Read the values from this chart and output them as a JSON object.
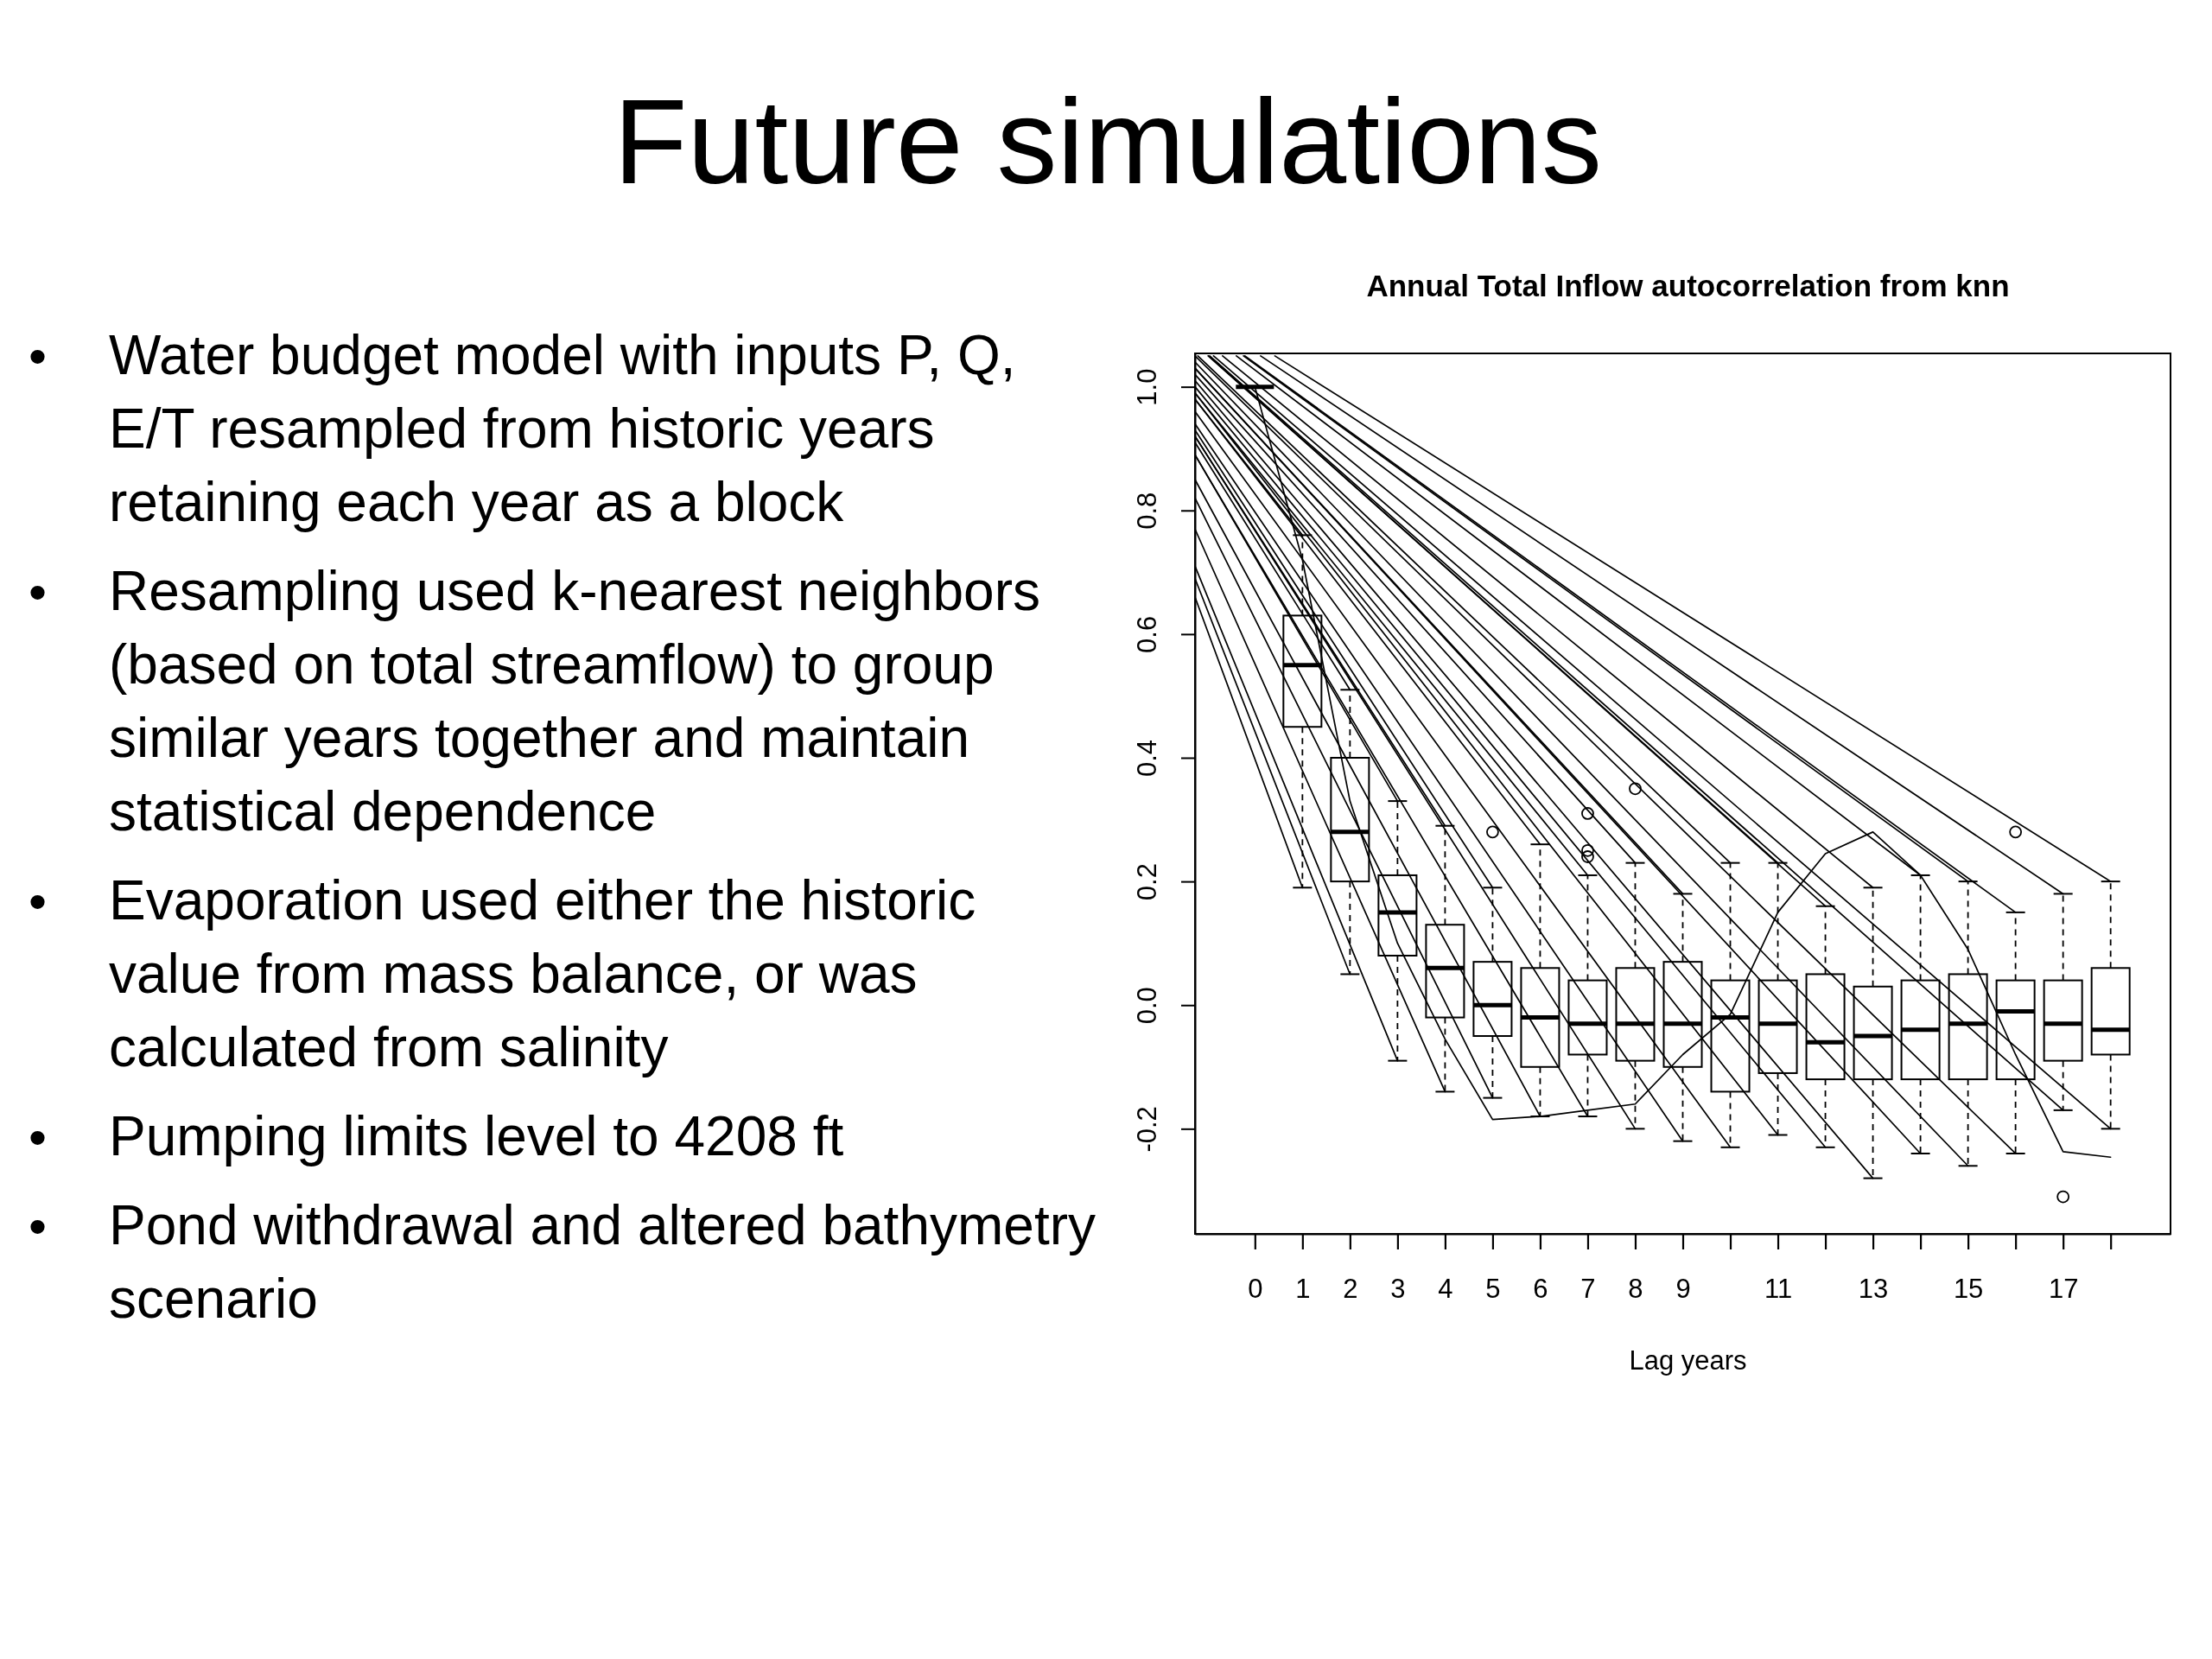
{
  "chart_data": {
    "type": "box",
    "title": "Future simulations",
    "subtitle": "Annual Total Inflow autocorrelation from knn",
    "xlabel": "Lag years",
    "annotations": [
      "•\tWater budget model with inputs P, Q,\nE/T resampled from historic years\nretaining each year as a block",
      "•\tResampling used k-nearest neighbors\n(based on total streamflow) to group\nsimilar years together and maintain\nstatistical dependence",
      "•\tEvaporation used either the historic\nvalue from mass balance, or was\ncalculated from salinity",
      "•\tPumping limits level to 4208 ft",
      "•\tPond withdrawal and altered bathymetry\nscenario"
    ],
    "xlim": [
      -1.26,
      19.26
    ],
    "xticks": [
      0,
      1,
      2,
      3,
      4,
      5,
      6,
      7,
      8,
      9,
      11,
      13,
      15,
      17
    ],
    "ylim": [
      -0.37,
      1.054
    ],
    "yticks": [
      -0.2,
      {
        "value": 0,
        "label": "0.0"
      },
      0.2,
      0.4,
      0.6,
      0.8,
      {
        "value": 1,
        "label": "1.0"
      }
    ],
    "series": [
      {
        "color": "#000000",
        "x": [
          0,
          1,
          2,
          3,
          4,
          5,
          6,
          7,
          8,
          9,
          10,
          11,
          12,
          13,
          14,
          15,
          16,
          17,
          18
        ],
        "boxes": [
          {
            "low": 1,
            "q1": 1,
            "median": 1,
            "q3": 1,
            "high": 1
          },
          {
            "low": 0.19,
            "q1": 0.45,
            "median": 0.55,
            "q3": 0.63,
            "high": 0.76
          },
          {
            "low": 0.05,
            "q1": 0.2,
            "median": 0.28,
            "q3": 0.4,
            "high": 0.51
          },
          {
            "low": -0.09,
            "q1": 0.08,
            "median": 0.15,
            "q3": 0.21,
            "high": 0.33
          },
          {
            "low": -0.14,
            "q1": -0.02,
            "median": 0.06,
            "q3": 0.13,
            "high": 0.29
          },
          {
            "low": -0.15,
            "q1": -0.05,
            "median": 0,
            "q3": 0.07,
            "high": 0.19,
            "outliers": [
              0.28
            ]
          },
          {
            "low": -0.18,
            "q1": -0.1,
            "median": -0.02,
            "q3": 0.06,
            "high": 0.26
          },
          {
            "low": -0.18,
            "q1": -0.08,
            "median": -0.03,
            "q3": 0.04,
            "high": 0.21,
            "outliers": [
              0.31,
              0.25,
              0.24
            ]
          },
          {
            "low": -0.2,
            "q1": -0.09,
            "median": -0.03,
            "q3": 0.06,
            "high": 0.23,
            "outliers": [
              0.35
            ]
          },
          {
            "low": -0.22,
            "q1": -0.1,
            "median": -0.03,
            "q3": 0.07,
            "high": 0.18
          },
          {
            "low": -0.23,
            "q1": -0.14,
            "median": -0.02,
            "q3": 0.04,
            "high": 0.23
          },
          {
            "low": -0.21,
            "q1": -0.11,
            "median": -0.03,
            "q3": 0.04,
            "high": 0.23
          },
          {
            "low": -0.23,
            "q1": -0.12,
            "median": -0.06,
            "q3": 0.05,
            "high": 0.16
          },
          {
            "low": -0.28,
            "q1": -0.12,
            "median": -0.05,
            "q3": 0.03,
            "high": 0.19
          },
          {
            "low": -0.24,
            "q1": -0.12,
            "median": -0.04,
            "q3": 0.04,
            "high": 0.21
          },
          {
            "low": -0.26,
            "q1": -0.12,
            "median": -0.03,
            "q3": 0.05,
            "high": 0.2
          },
          {
            "low": -0.24,
            "q1": -0.12,
            "median": -0.01,
            "q3": 0.04,
            "high": 0.15,
            "outliers": [
              0.28
            ]
          },
          {
            "low": -0.17,
            "q1": -0.09,
            "median": -0.03,
            "q3": 0.04,
            "high": 0.18,
            "outliers": [
              -0.31
            ]
          },
          {
            "low": -0.2,
            "q1": -0.08,
            "median": -0.04,
            "q3": 0.06,
            "high": 0.2
          }
        ]
      },
      {
        "type": "line",
        "color": "#000000",
        "x": [
          -1.26,
          1
        ],
        "values": [
          0.66,
          0.19
        ]
      },
      {
        "type": "line",
        "color": "#000000",
        "x": [
          -1.26,
          1
        ],
        "values": [
          0.98,
          0.76
        ]
      },
      {
        "type": "line",
        "color": "#000000",
        "x": [
          -1.26,
          2
        ],
        "values": [
          0.69,
          0.05
        ]
      },
      {
        "type": "line",
        "color": "#000000",
        "x": [
          -1.26,
          2
        ],
        "values": [
          0.91,
          0.51
        ]
      },
      {
        "type": "line",
        "color": "#000000",
        "x": [
          -1.26,
          3
        ],
        "values": [
          0.71,
          -0.09
        ]
      },
      {
        "type": "line",
        "color": "#000000",
        "x": [
          -1.26,
          3
        ],
        "values": [
          0.89,
          0.33
        ]
      },
      {
        "type": "line",
        "color": "#000000",
        "x": [
          -1.26,
          4
        ],
        "values": [
          0.77,
          -0.14
        ]
      },
      {
        "type": "line",
        "color": "#000000",
        "x": [
          -1.26,
          4
        ],
        "values": [
          0.92,
          0.29
        ]
      },
      {
        "type": "line",
        "color": "#000000",
        "x": [
          -1.26,
          5
        ],
        "values": [
          0.82,
          -0.15
        ]
      },
      {
        "type": "line",
        "color": "#000000",
        "x": [
          -1.26,
          5
        ],
        "values": [
          0.93,
          0.19
        ]
      },
      {
        "type": "line",
        "color": "#000000",
        "x": [
          -1.26,
          6
        ],
        "values": [
          0.85,
          -0.18
        ]
      },
      {
        "type": "line",
        "color": "#000000",
        "x": [
          -1.26,
          6
        ],
        "values": [
          0.98,
          0.26
        ]
      },
      {
        "type": "line",
        "color": "#000000",
        "x": [
          -1.26,
          7
        ],
        "values": [
          0.89,
          -0.18
        ]
      },
      {
        "type": "line",
        "color": "#000000",
        "x": [
          -1.26,
          7
        ],
        "values": [
          0.99,
          0.21
        ]
      },
      {
        "type": "line",
        "color": "#000000",
        "x": [
          -1.26,
          8
        ],
        "values": [
          0.92,
          -0.2
        ]
      },
      {
        "type": "line",
        "color": "#000000",
        "x": [
          -1.26,
          8
        ],
        "values": [
          1.02,
          0.23
        ]
      },
      {
        "type": "line",
        "color": "#000000",
        "x": [
          -1.26,
          9
        ],
        "values": [
          0.94,
          -0.22
        ]
      },
      {
        "type": "line",
        "color": "#000000",
        "x": [
          -1.26,
          9
        ],
        "values": [
          1.03,
          0.18
        ]
      },
      {
        "type": "line",
        "color": "#000000",
        "x": [
          -1.26,
          10
        ],
        "values": [
          0.96,
          -0.23
        ]
      },
      {
        "type": "line",
        "color": "#000000",
        "x": [
          -1.2,
          10
        ],
        "values": [
          1.05,
          0.23
        ]
      },
      {
        "type": "line",
        "color": "#000000",
        "x": [
          -1.26,
          11
        ],
        "values": [
          0.99,
          -0.21
        ]
      },
      {
        "type": "line",
        "color": "#000000",
        "x": [
          -0.98,
          11
        ],
        "values": [
          1.05,
          0.23
        ]
      },
      {
        "type": "line",
        "color": "#000000",
        "x": [
          -1.26,
          12
        ],
        "values": [
          1.0,
          -0.23
        ]
      },
      {
        "type": "line",
        "color": "#000000",
        "x": [
          -0.98,
          12
        ],
        "values": [
          1.05,
          0.16
        ]
      },
      {
        "type": "line",
        "color": "#000000",
        "x": [
          -1.26,
          13
        ],
        "values": [
          1.01,
          -0.28
        ]
      },
      {
        "type": "line",
        "color": "#000000",
        "x": [
          -0.68,
          13
        ],
        "values": [
          1.05,
          0.19
        ]
      },
      {
        "type": "line",
        "color": "#000000",
        "x": [
          -1.26,
          14
        ],
        "values": [
          1.03,
          -0.24
        ]
      },
      {
        "type": "line",
        "color": "#000000",
        "x": [
          -0.39,
          14
        ],
        "values": [
          1.05,
          0.21
        ]
      },
      {
        "type": "line",
        "color": "#000000",
        "x": [
          -1.26,
          15
        ],
        "values": [
          1.04,
          -0.26
        ]
      },
      {
        "type": "line",
        "color": "#000000",
        "x": [
          -0.24,
          15
        ],
        "values": [
          1.05,
          0.2
        ]
      },
      {
        "type": "line",
        "color": "#000000",
        "x": [
          -1.26,
          16
        ],
        "values": [
          1.05,
          -0.24
        ]
      },
      {
        "type": "line",
        "color": "#000000",
        "x": [
          -0.21,
          16
        ],
        "values": [
          1.05,
          0.15
        ]
      },
      {
        "type": "line",
        "color": "#000000",
        "x": [
          -0.95,
          17
        ],
        "values": [
          1.05,
          -0.17
        ]
      },
      {
        "type": "line",
        "color": "#000000",
        "x": [
          0.12,
          17
        ],
        "values": [
          1.05,
          0.18
        ]
      },
      {
        "type": "line",
        "color": "#000000",
        "x": [
          -0.87,
          18
        ],
        "values": [
          1.05,
          -0.2
        ]
      },
      {
        "type": "line",
        "color": "#000000",
        "x": [
          0.42,
          18
        ],
        "values": [
          1.05,
          0.2
        ]
      },
      {
        "type": "line",
        "color": "#000000",
        "x": [
          0,
          1,
          2,
          3,
          4,
          5,
          6,
          7,
          8,
          9,
          10,
          11,
          12,
          13,
          14,
          15,
          16,
          17,
          18
        ],
        "values": [
          1.0,
          0.72,
          0.33,
          0.1,
          -0.055,
          -0.185,
          -0.18,
          -0.17,
          -0.16,
          -0.08,
          -0.015,
          0.15,
          0.245,
          0.28,
          0.21,
          0.09,
          -0.08,
          -0.237,
          -0.246
        ]
      }
    ]
  }
}
